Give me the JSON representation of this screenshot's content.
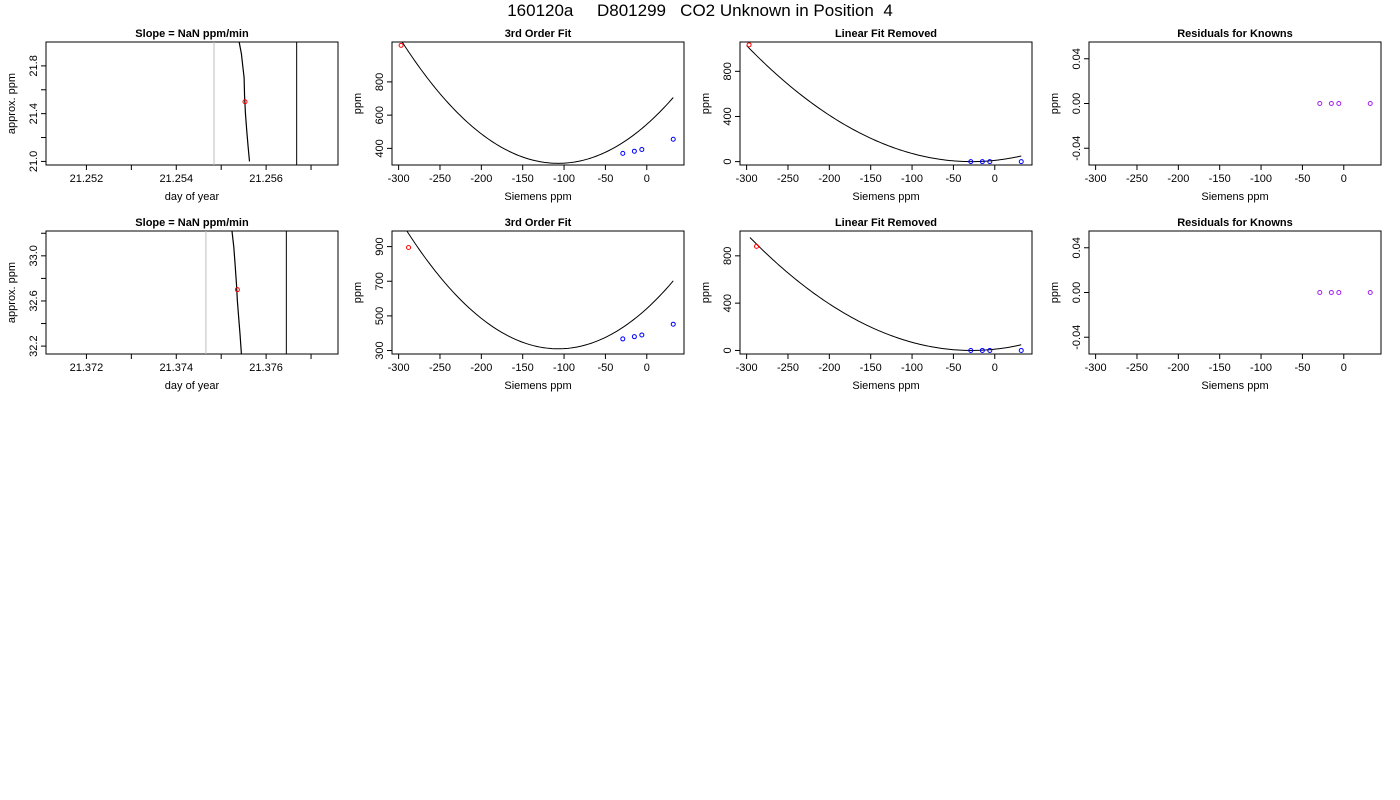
{
  "figure": {
    "title": "160120a     D801299   CO2 Unknown in Position  4"
  },
  "colors": {
    "unknown": "#ff0000",
    "known": "#0000ff",
    "residual": "#a020f0",
    "vline": "#bebebe",
    "line": "#000000"
  },
  "chart_data": [
    {
      "id": "r1-slope",
      "type": "line",
      "title": "Slope =  NaN  ppm/min",
      "xlabel": "day of year",
      "ylabel": "approx. ppm",
      "xlim": [
        21.2511,
        21.2576
      ],
      "ylim": [
        20.97,
        22.0
      ],
      "xticks": [
        21.252,
        21.253,
        21.254,
        21.255,
        21.256,
        21.257
      ],
      "xticklabels": [
        "21.252",
        "",
        "21.254",
        "",
        "21.256",
        ""
      ],
      "yticks": [
        21.0,
        21.2,
        21.4,
        21.6,
        21.8
      ],
      "yticklabels": [
        "21.0",
        "",
        "21.4",
        "",
        "21.8"
      ],
      "vlines": [
        {
          "x": 21.25484,
          "color": "gray"
        },
        {
          "x": 21.25668,
          "color": "black"
        }
      ],
      "series": [
        {
          "x": [
            21.2554,
            21.25545,
            21.25548,
            21.25551,
            21.25552,
            21.25554,
            21.25557,
            21.2556,
            21.25563
          ],
          "y": [
            22.0,
            21.9,
            21.8,
            21.7,
            21.55,
            21.4,
            21.25,
            21.12,
            21.0
          ]
        }
      ],
      "points": [
        {
          "x": 21.25553,
          "y": 21.5,
          "color": "red"
        }
      ]
    },
    {
      "id": "r1-fit",
      "type": "line",
      "title": "3rd Order Fit",
      "xlabel": "Siemens ppm",
      "ylabel": "ppm",
      "xlim": [
        -308,
        45
      ],
      "ylim": [
        300,
        1040
      ],
      "xticks": [
        -300,
        -250,
        -200,
        -150,
        -100,
        -50,
        0
      ],
      "yticks": [
        400,
        600,
        800
      ],
      "curve": {
        "a": 310,
        "b": -107,
        "c": 0.0205
      },
      "curve_range": [
        -302,
        32
      ],
      "points": [
        {
          "x": -297,
          "y": 1020,
          "color": "red"
        },
        {
          "x": -29,
          "y": 370,
          "color": "blue"
        },
        {
          "x": -15,
          "y": 383,
          "color": "blue"
        },
        {
          "x": -6,
          "y": 393,
          "color": "blue"
        },
        {
          "x": 32,
          "y": 455,
          "color": "blue"
        }
      ]
    },
    {
      "id": "r1-lin",
      "type": "line",
      "title": "Linear Fit Removed",
      "xlabel": "Siemens ppm",
      "ylabel": "ppm",
      "xlim": [
        -308,
        45
      ],
      "ylim": [
        -30,
        1060
      ],
      "xticks": [
        -300,
        -250,
        -200,
        -150,
        -100,
        -50,
        0
      ],
      "yticks": [
        0,
        400,
        800
      ],
      "curve": {
        "a": 0,
        "b": -28,
        "c": 0.0139
      },
      "curve_range": [
        -300,
        32
      ],
      "points": [
        {
          "x": -297,
          "y": 1035,
          "color": "red"
        },
        {
          "x": -29,
          "y": 0,
          "color": "blue"
        },
        {
          "x": -15,
          "y": 0,
          "color": "blue"
        },
        {
          "x": -6,
          "y": 0,
          "color": "blue"
        },
        {
          "x": 32,
          "y": 0,
          "color": "blue"
        }
      ]
    },
    {
      "id": "r1-res",
      "type": "scatter",
      "title": "Residuals for Knowns",
      "xlabel": "Siemens ppm",
      "ylabel": "ppm",
      "xlim": [
        -308,
        45
      ],
      "ylim": [
        -0.055,
        0.055
      ],
      "xticks": [
        -300,
        -250,
        -200,
        -150,
        -100,
        -50,
        0
      ],
      "yticks": [
        -0.04,
        0.0,
        0.04
      ],
      "yticklabels": [
        "-0.04",
        "0.00",
        "0.04"
      ],
      "points": [
        {
          "x": -29,
          "y": 0,
          "color": "purple"
        },
        {
          "x": -15,
          "y": 0,
          "color": "purple"
        },
        {
          "x": -6,
          "y": 0,
          "color": "purple"
        },
        {
          "x": 32,
          "y": 0,
          "color": "purple"
        }
      ]
    },
    {
      "id": "r2-slope",
      "type": "line",
      "title": "Slope =  NaN  ppm/min",
      "xlabel": "day of year",
      "ylabel": "approx. ppm",
      "xlim": [
        21.3711,
        21.3776
      ],
      "ylim": [
        32.13,
        33.22
      ],
      "xticks": [
        21.372,
        21.373,
        21.374,
        21.375,
        21.376,
        21.377
      ],
      "xticklabels": [
        "21.372",
        "",
        "21.374",
        "",
        "21.376",
        ""
      ],
      "yticks": [
        32.2,
        32.4,
        32.6,
        32.8,
        33.0,
        33.2
      ],
      "yticklabels": [
        "32.2",
        "",
        "32.6",
        "",
        "33.0",
        ""
      ],
      "vlines": [
        {
          "x": 21.37466,
          "color": "gray"
        },
        {
          "x": 21.37645,
          "color": "black"
        }
      ],
      "series": [
        {
          "x": [
            21.37524,
            21.37528,
            21.37531,
            21.37534,
            21.37536,
            21.37539,
            21.37542,
            21.37545
          ],
          "y": [
            33.22,
            33.08,
            32.92,
            32.75,
            32.6,
            32.45,
            32.3,
            32.13
          ]
        }
      ],
      "points": [
        {
          "x": 21.37536,
          "y": 32.7,
          "color": "red"
        }
      ]
    },
    {
      "id": "r2-fit",
      "type": "line",
      "title": "3rd Order Fit",
      "xlabel": "Siemens ppm",
      "ylabel": "ppm",
      "xlim": [
        -308,
        45
      ],
      "ylim": [
        280,
        990
      ],
      "xticks": [
        -300,
        -250,
        -200,
        -150,
        -100,
        -50,
        0
      ],
      "yticks": [
        300,
        500,
        700,
        900
      ],
      "curve": {
        "a": 310,
        "b": -107,
        "c": 0.0203
      },
      "curve_range": [
        -300,
        32
      ],
      "points": [
        {
          "x": -288,
          "y": 895,
          "color": "red"
        },
        {
          "x": -29,
          "y": 367,
          "color": "blue"
        },
        {
          "x": -15,
          "y": 380,
          "color": "blue"
        },
        {
          "x": -6,
          "y": 390,
          "color": "blue"
        },
        {
          "x": 32,
          "y": 452,
          "color": "blue"
        }
      ]
    },
    {
      "id": "r2-lin",
      "type": "line",
      "title": "Linear Fit Removed",
      "xlabel": "Siemens ppm",
      "ylabel": "ppm",
      "xlim": [
        -308,
        45
      ],
      "ylim": [
        -30,
        1010
      ],
      "xticks": [
        -300,
        -250,
        -200,
        -150,
        -100,
        -50,
        0
      ],
      "yticks": [
        0,
        400,
        800
      ],
      "curve": {
        "a": 0,
        "b": -28,
        "c": 0.0133
      },
      "curve_range": [
        -296,
        32
      ],
      "points": [
        {
          "x": -288,
          "y": 880,
          "color": "red"
        },
        {
          "x": -29,
          "y": 0,
          "color": "blue"
        },
        {
          "x": -15,
          "y": 0,
          "color": "blue"
        },
        {
          "x": -6,
          "y": 0,
          "color": "blue"
        },
        {
          "x": 32,
          "y": 0,
          "color": "blue"
        }
      ]
    },
    {
      "id": "r2-res",
      "type": "scatter",
      "title": "Residuals for Knowns",
      "xlabel": "Siemens ppm",
      "ylabel": "ppm",
      "xlim": [
        -308,
        45
      ],
      "ylim": [
        -0.055,
        0.055
      ],
      "xticks": [
        -300,
        -250,
        -200,
        -150,
        -100,
        -50,
        0
      ],
      "yticks": [
        -0.04,
        0.0,
        0.04
      ],
      "yticklabels": [
        "-0.04",
        "0.00",
        "0.04"
      ],
      "points": [
        {
          "x": -29,
          "y": 0,
          "color": "purple"
        },
        {
          "x": -15,
          "y": 0,
          "color": "purple"
        },
        {
          "x": -6,
          "y": 0,
          "color": "purple"
        },
        {
          "x": 32,
          "y": 0,
          "color": "purple"
        }
      ]
    }
  ]
}
